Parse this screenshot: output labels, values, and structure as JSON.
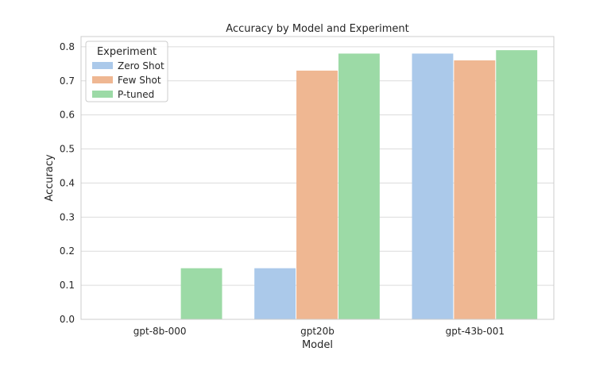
{
  "chart_data": {
    "type": "bar",
    "title": "Accuracy by Model and Experiment",
    "xlabel": "Model",
    "ylabel": "Accuracy",
    "categories": [
      "gpt-8b-000",
      "gpt20b",
      "gpt-43b-001"
    ],
    "series": [
      {
        "name": "Zero Shot",
        "values": [
          0.0,
          0.15,
          0.78
        ],
        "color": "#abc9ea"
      },
      {
        "name": "Few Shot",
        "values": [
          0.0,
          0.73,
          0.76
        ],
        "color": "#efb792"
      },
      {
        "name": "P-tuned",
        "values": [
          0.15,
          0.78,
          0.79
        ],
        "color": "#9cdaa6"
      }
    ],
    "ylim": [
      0,
      0.83
    ],
    "yticks": [
      "0.0",
      "0.1",
      "0.2",
      "0.3",
      "0.4",
      "0.5",
      "0.6",
      "0.7",
      "0.8"
    ],
    "grid": true,
    "legend": {
      "title": "Experiment",
      "placement": "top-left"
    }
  }
}
